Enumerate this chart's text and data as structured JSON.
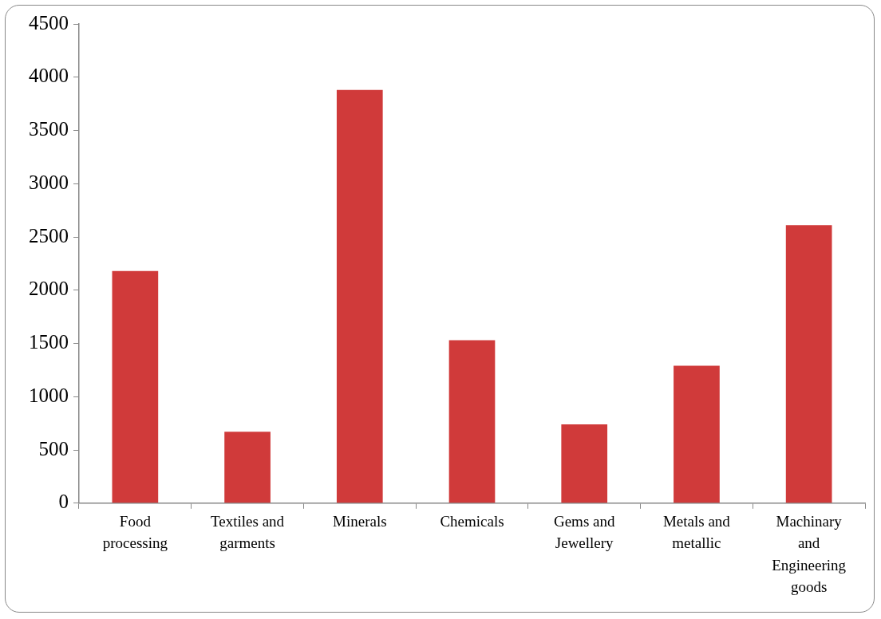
{
  "chart_data": {
    "type": "bar",
    "categories": [
      "Food processing",
      "Textiles and garments",
      "Minerals",
      "Chemicals",
      "Gems and Jewellery",
      "Metals and metallic",
      "Machinary and Engineering goods"
    ],
    "values": [
      2180,
      670,
      3880,
      1530,
      740,
      1290,
      2610
    ],
    "color": "#d03a3a",
    "ylim": [
      0,
      4500
    ],
    "yticks": [
      0,
      500,
      1000,
      1500,
      2000,
      2500,
      3000,
      3500,
      4000,
      4500
    ],
    "grid": false,
    "legend": false
  }
}
